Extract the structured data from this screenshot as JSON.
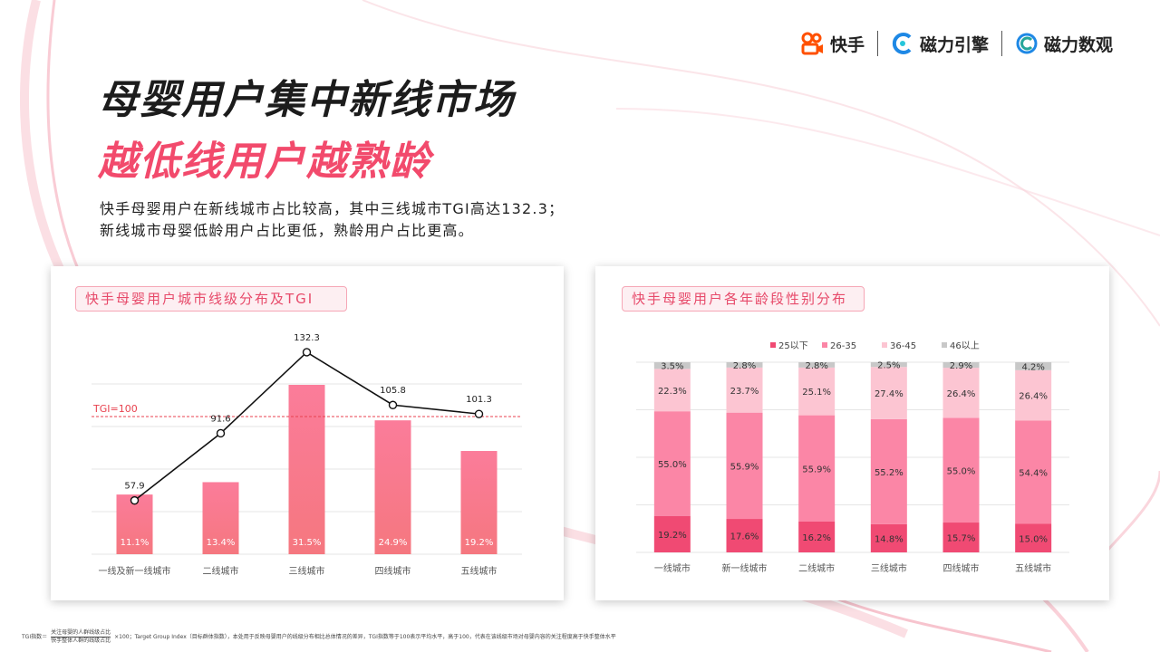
{
  "logos": {
    "kuaishou": "快手",
    "engine": "磁力引擎",
    "data": "磁力数观"
  },
  "title": "母婴用户集中新线市场",
  "subtitle": "越低线用户越熟龄",
  "description": [
    "快手母婴用户在新线城市占比较高，其中三线城市TGI高达132.3；",
    "新线城市母婴低龄用户占比更低，熟龄用户占比更高。"
  ],
  "colors": {
    "accent": "#f24a6c",
    "bar_left_top": "#fb7c9a",
    "bar_left_bottom": "#f5777f",
    "age_25": "#f04a73",
    "age_26_35": "#fb86a6",
    "age_36_45": "#fcc5d2",
    "age_46": "#c8c8c8"
  },
  "chart_data": [
    {
      "type": "bar",
      "title": "快手母婴用户城市线级分布及TGI",
      "categories": [
        "一线及新一线城市",
        "二线城市",
        "三线城市",
        "四线城市",
        "五线城市"
      ],
      "values": [
        11.1,
        13.4,
        31.5,
        24.9,
        19.2
      ],
      "value_labels": [
        "11.1%",
        "13.4%",
        "31.5%",
        "24.9%",
        "19.2%"
      ],
      "line": {
        "values": [
          57.9,
          91.6,
          132.3,
          105.8,
          101.3
        ],
        "value_labels": [
          "57.9",
          "91.6",
          "132.3",
          "105.8",
          "101.3"
        ]
      },
      "reference_line": {
        "value": 100,
        "label": "TGI=100"
      },
      "grid": true
    },
    {
      "type": "bar",
      "stacked": true,
      "title": "快手母婴用户各年龄段性别分布",
      "categories": [
        "一线城市",
        "新一线城市",
        "二线城市",
        "三线城市",
        "四线城市",
        "五线城市"
      ],
      "legend_position": "top-center",
      "series": [
        {
          "name": "25以下",
          "values": [
            19.2,
            17.6,
            16.2,
            14.8,
            15.7,
            15.0
          ],
          "labels": [
            "19.2%",
            "17.6%",
            "16.2%",
            "14.8%",
            "15.7%",
            "15.0%"
          ]
        },
        {
          "name": "26-35",
          "values": [
            55.0,
            55.9,
            55.9,
            55.2,
            55.0,
            54.4
          ],
          "labels": [
            "55.0%",
            "55.9%",
            "55.9%",
            "55.2%",
            "55.0%",
            "54.4%"
          ]
        },
        {
          "name": "36-45",
          "values": [
            22.3,
            23.7,
            25.1,
            27.4,
            26.4,
            26.4
          ],
          "labels": [
            "22.3%",
            "23.7%",
            "25.1%",
            "27.4%",
            "26.4%",
            "26.4%"
          ]
        },
        {
          "name": "46以上",
          "values": [
            3.5,
            2.8,
            2.8,
            2.5,
            2.9,
            4.2
          ],
          "labels": [
            "3.5%",
            "2.8%",
            "2.8%",
            "2.5%",
            "2.9%",
            "4.2%"
          ]
        }
      ],
      "ylim": [
        0,
        100
      ],
      "grid": true
    }
  ],
  "footnote": {
    "prefix": "TGI指数＝",
    "numerator": "关注母婴的人群线级占比",
    "denominator": "快手整体人群的线级占比",
    "body": "×100；Target Group Index（目标群体指数），本处用于反映母婴用户的线级分布相比总体情况的差异，TGI指数等于100表示平均水平，高于100，代表在该线级市场对母婴内容的关注程度高于快手整体水平"
  }
}
